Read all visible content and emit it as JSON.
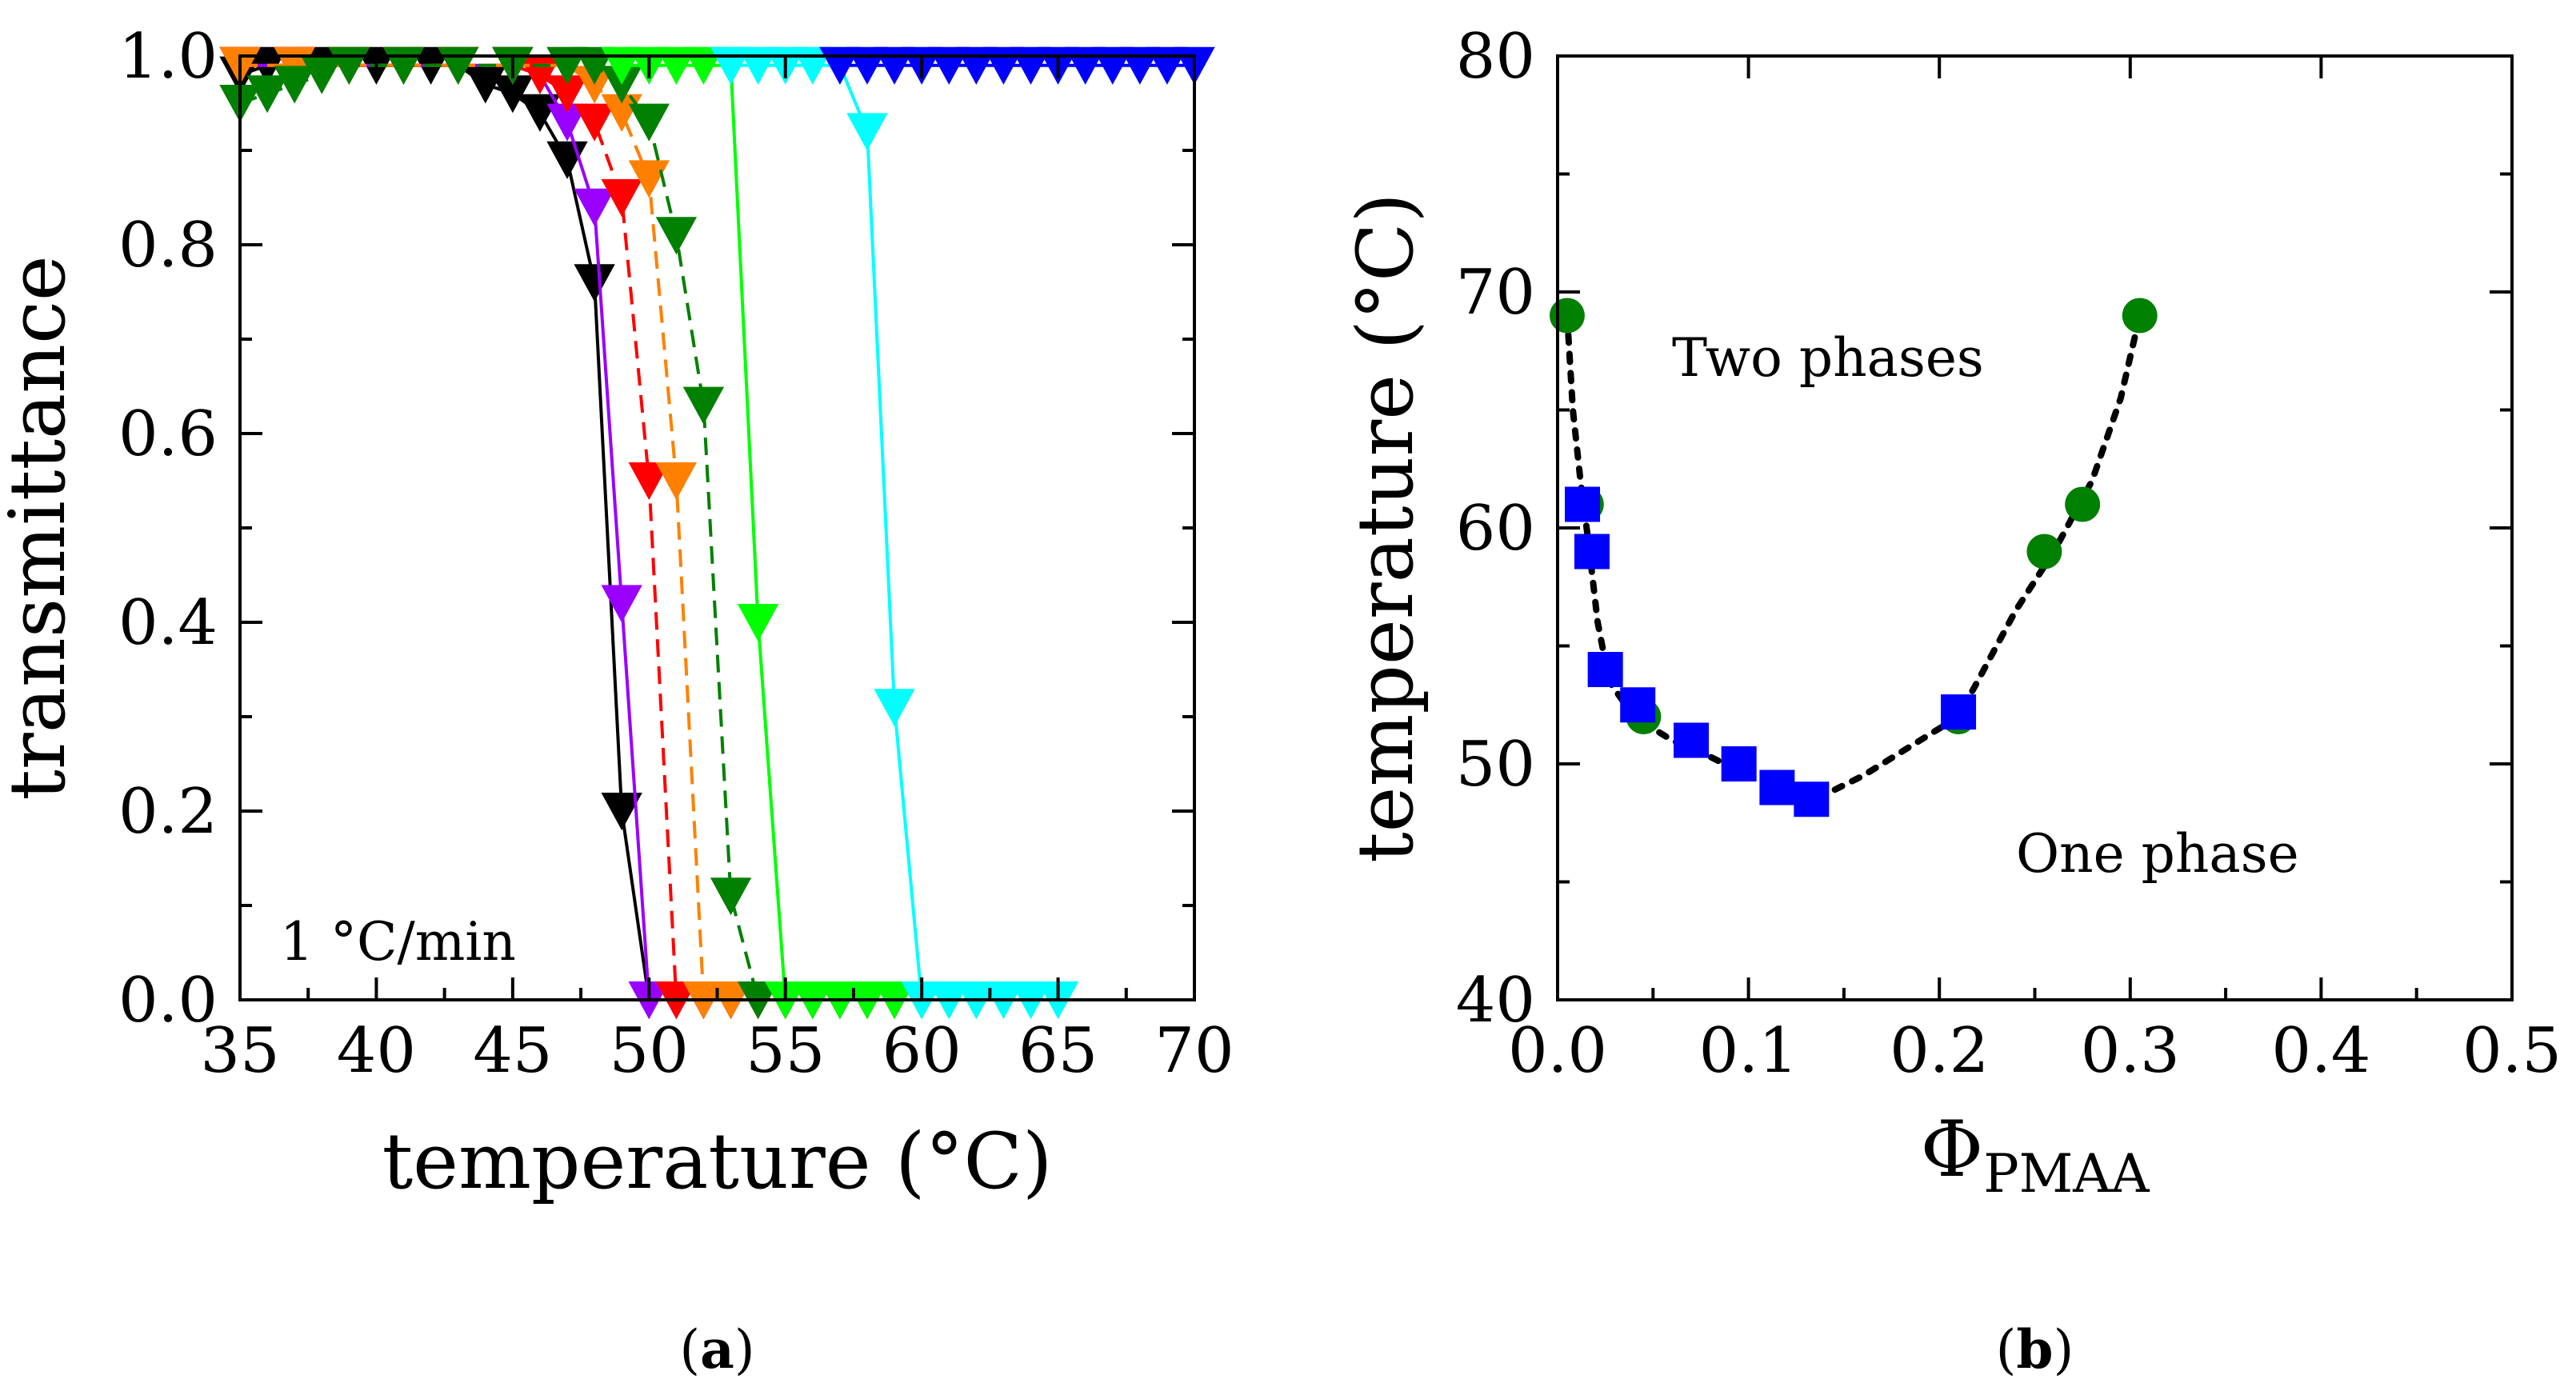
{
  "chart_data": [
    {
      "panel": "(a)",
      "panel_letter": "a",
      "type": "line",
      "title": "",
      "xlabel": "temperature (°C)",
      "ylabel": "transmittance",
      "xlim": [
        35,
        70
      ],
      "ylim": [
        0,
        1.0
      ],
      "xticks": [
        "35",
        "40",
        "45",
        "50",
        "55",
        "60",
        "65",
        "70"
      ],
      "yticks": [
        "0.0",
        "0.2",
        "0.4",
        "0.6",
        "0.8",
        "1.0"
      ],
      "marker": "triangle-down",
      "annotation": "1 °C/min",
      "series": [
        {
          "color": "#000000",
          "dash": false,
          "points": [
            [
              35,
              0.98
            ],
            [
              36,
              0.99
            ],
            [
              37,
              0.99
            ],
            [
              38,
              0.99
            ],
            [
              39,
              0.99
            ],
            [
              40,
              0.99
            ],
            [
              41,
              0.99
            ],
            [
              42,
              0.99
            ],
            [
              43,
              0.99
            ],
            [
              44,
              0.97
            ],
            [
              45,
              0.96
            ],
            [
              46,
              0.94
            ],
            [
              47,
              0.89
            ],
            [
              48,
              0.76
            ],
            [
              49,
              0.2
            ],
            [
              50,
              0.0
            ],
            [
              51,
              0.0
            ],
            [
              52,
              0.0
            ],
            [
              53,
              0.0
            ],
            [
              54,
              0.0
            ],
            [
              55,
              0.0
            ],
            [
              56,
              0.0
            ],
            [
              57,
              0.0
            ],
            [
              58,
              0.0
            ],
            [
              59,
              0.0
            ]
          ]
        },
        {
          "color": "#9900ff",
          "dash": false,
          "points": [
            [
              35,
              0.99
            ],
            [
              37,
              0.99
            ],
            [
              39,
              0.99
            ],
            [
              41,
              0.99
            ],
            [
              43,
              0.99
            ],
            [
              45,
              0.99
            ],
            [
              46,
              0.98
            ],
            [
              47,
              0.93
            ],
            [
              48,
              0.84
            ],
            [
              49,
              0.42
            ],
            [
              50,
              0.0
            ],
            [
              51,
              0.0
            ],
            [
              52,
              0.0
            ],
            [
              53,
              0.0
            ],
            [
              54,
              0.0
            ],
            [
              55,
              0.0
            ],
            [
              56,
              0.0
            ],
            [
              57,
              0.0
            ]
          ]
        },
        {
          "color": "#ff0000",
          "dash": true,
          "points": [
            [
              35,
              0.99
            ],
            [
              37,
              0.99
            ],
            [
              39,
              0.99
            ],
            [
              41,
              0.99
            ],
            [
              43,
              0.99
            ],
            [
              45,
              0.99
            ],
            [
              46,
              0.98
            ],
            [
              47,
              0.96
            ],
            [
              48,
              0.93
            ],
            [
              49,
              0.85
            ],
            [
              50,
              0.55
            ],
            [
              51,
              0.0
            ],
            [
              52,
              0.0
            ],
            [
              53,
              0.0
            ],
            [
              54,
              0.0
            ],
            [
              55,
              0.0
            ],
            [
              56,
              0.0
            ],
            [
              57,
              0.0
            ],
            [
              58,
              0.0
            ],
            [
              59,
              0.0
            ]
          ]
        },
        {
          "color": "#ff8000",
          "dash": true,
          "points": [
            [
              35,
              0.99
            ],
            [
              37,
              0.99
            ],
            [
              39,
              0.99
            ],
            [
              41,
              0.99
            ],
            [
              43,
              0.99
            ],
            [
              45,
              0.99
            ],
            [
              47,
              0.99
            ],
            [
              48,
              0.97
            ],
            [
              49,
              0.94
            ],
            [
              50,
              0.87
            ],
            [
              51,
              0.55
            ],
            [
              52,
              0.0
            ],
            [
              53,
              0.0
            ],
            [
              54,
              0.0
            ],
            [
              55,
              0.0
            ],
            [
              56,
              0.0
            ],
            [
              57,
              0.0
            ],
            [
              58,
              0.0
            ],
            [
              59,
              0.0
            ],
            [
              60,
              0.0
            ]
          ]
        },
        {
          "color": "#008000",
          "dash": true,
          "points": [
            [
              35,
              0.95
            ],
            [
              36,
              0.96
            ],
            [
              37,
              0.97
            ],
            [
              38,
              0.98
            ],
            [
              39,
              0.99
            ],
            [
              41,
              0.99
            ],
            [
              43,
              0.99
            ],
            [
              45,
              0.99
            ],
            [
              47,
              0.99
            ],
            [
              48,
              0.99
            ],
            [
              49,
              0.97
            ],
            [
              50,
              0.93
            ],
            [
              51,
              0.81
            ],
            [
              52,
              0.63
            ],
            [
              53,
              0.11
            ],
            [
              54,
              0.0
            ],
            [
              55,
              0.0
            ],
            [
              56,
              0.0
            ],
            [
              57,
              0.0
            ],
            [
              58,
              0.0
            ],
            [
              59,
              0.0
            ],
            [
              60,
              0.0
            ],
            [
              61,
              0.0
            ]
          ]
        },
        {
          "color": "#00ff00",
          "dash": false,
          "points": [
            [
              49,
              0.99
            ],
            [
              50,
              0.99
            ],
            [
              51,
              0.99
            ],
            [
              52,
              0.99
            ],
            [
              53,
              0.99
            ],
            [
              54,
              0.4
            ],
            [
              55,
              0.0
            ],
            [
              56,
              0.0
            ],
            [
              57,
              0.0
            ],
            [
              58,
              0.0
            ],
            [
              59,
              0.0
            ],
            [
              60,
              0.0
            ],
            [
              61,
              0.0
            ],
            [
              62,
              0.0
            ]
          ]
        },
        {
          "color": "#00ffff",
          "dash": false,
          "points": [
            [
              53,
              0.99
            ],
            [
              54,
              0.99
            ],
            [
              55,
              0.99
            ],
            [
              56,
              0.99
            ],
            [
              57,
              0.99
            ],
            [
              58,
              0.92
            ],
            [
              59,
              0.31
            ],
            [
              60,
              0.0
            ],
            [
              61,
              0.0
            ],
            [
              62,
              0.0
            ],
            [
              63,
              0.0
            ],
            [
              64,
              0.0
            ],
            [
              65,
              0.0
            ]
          ]
        },
        {
          "color": "#0000ff",
          "dash": false,
          "points": [
            [
              57,
              0.99
            ],
            [
              58,
              0.99
            ],
            [
              59,
              0.99
            ],
            [
              60,
              0.99
            ],
            [
              61,
              0.99
            ],
            [
              62,
              0.99
            ],
            [
              63,
              0.99
            ],
            [
              64,
              0.99
            ],
            [
              65,
              0.99
            ],
            [
              66,
              0.99
            ],
            [
              67,
              0.99
            ],
            [
              68,
              0.99
            ],
            [
              69,
              0.99
            ],
            [
              70,
              0.99
            ]
          ]
        }
      ]
    },
    {
      "panel": "(b)",
      "panel_letter": "b",
      "type": "scatter",
      "title": "",
      "xlabel": "Φ",
      "xlabel_sub": "PMAA",
      "ylabel": "temperature (°C)",
      "xlim": [
        0.0,
        0.5
      ],
      "ylim": [
        40,
        80
      ],
      "xticks": [
        "0.0",
        "0.1",
        "0.2",
        "0.3",
        "0.4",
        "0.5"
      ],
      "yticks": [
        "40",
        "50",
        "60",
        "70",
        "80"
      ],
      "annotations": [
        "Two phases",
        "One phase"
      ],
      "series": [
        {
          "marker": "circle",
          "color": "#008000",
          "points": [
            [
              0.005,
              69.0
            ],
            [
              0.015,
              61.0
            ],
            [
              0.045,
              52.0
            ],
            [
              0.21,
              52.0
            ],
            [
              0.255,
              59.0
            ],
            [
              0.275,
              61.0
            ],
            [
              0.305,
              69.0
            ]
          ]
        },
        {
          "marker": "square",
          "color": "#0000ff",
          "points": [
            [
              0.013,
              61.0
            ],
            [
              0.018,
              59.0
            ],
            [
              0.025,
              54.0
            ],
            [
              0.042,
              52.5
            ],
            [
              0.07,
              51.0
            ],
            [
              0.095,
              50.0
            ],
            [
              0.115,
              49.0
            ],
            [
              0.133,
              48.5
            ],
            [
              0.21,
              52.2
            ]
          ]
        }
      ],
      "trend_line": {
        "color": "#000000",
        "style": "dotted",
        "points": [
          [
            0.005,
            69.0
          ],
          [
            0.008,
            65.0
          ],
          [
            0.012,
            62.0
          ],
          [
            0.016,
            59.5
          ],
          [
            0.021,
            56.0
          ],
          [
            0.027,
            53.5
          ],
          [
            0.04,
            52.0
          ],
          [
            0.06,
            51.0
          ],
          [
            0.08,
            50.3
          ],
          [
            0.1,
            49.5
          ],
          [
            0.12,
            48.9
          ],
          [
            0.135,
            48.5
          ],
          [
            0.16,
            49.5
          ],
          [
            0.19,
            51.0
          ],
          [
            0.21,
            52.0
          ],
          [
            0.24,
            56.5
          ],
          [
            0.26,
            59.0
          ],
          [
            0.28,
            62.0
          ],
          [
            0.295,
            65.5
          ],
          [
            0.305,
            69.0
          ]
        ]
      }
    }
  ]
}
